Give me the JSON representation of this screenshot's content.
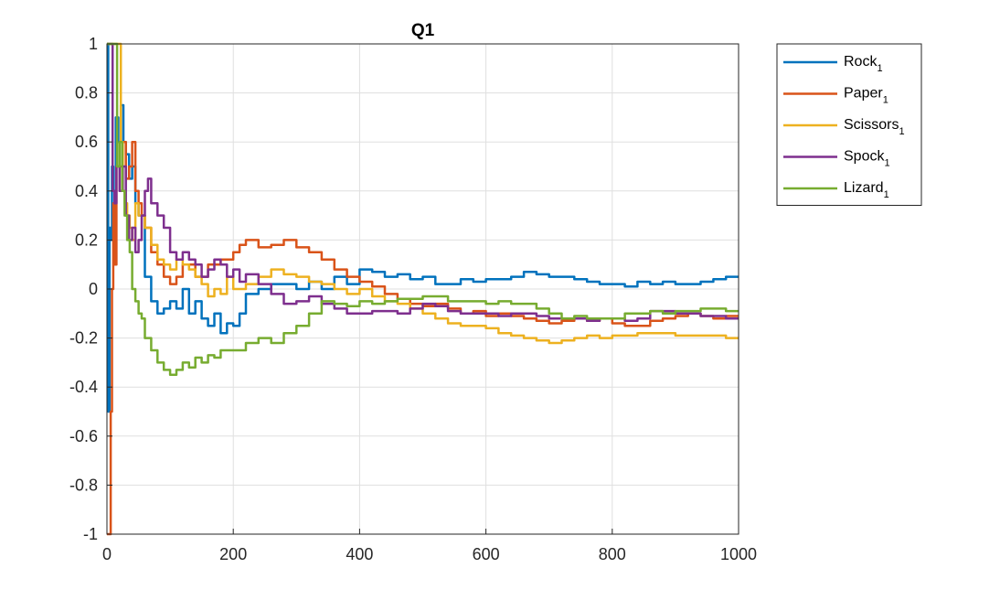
{
  "chart_data": {
    "type": "line",
    "title": "Q1",
    "xlabel": "",
    "ylabel": "",
    "xlim": [
      0,
      1000
    ],
    "ylim": [
      -1,
      1
    ],
    "xticks": [
      0,
      200,
      400,
      600,
      800,
      1000
    ],
    "yticks": [
      -1,
      -0.8,
      -0.6,
      -0.4,
      -0.2,
      0,
      0.2,
      0.4,
      0.6,
      0.8,
      1
    ],
    "xtick_labels": [
      "0",
      "200",
      "400",
      "600",
      "800",
      "1000"
    ],
    "ytick_labels": [
      "-1",
      "-0.8",
      "-0.6",
      "-0.4",
      "-0.2",
      "0",
      "0.2",
      "0.4",
      "0.6",
      "0.8",
      "1"
    ],
    "grid": true,
    "legend_position": "outside-top-right",
    "series": [
      {
        "name": "Rock",
        "subscript": "1",
        "color": "#0072BD",
        "x": [
          0,
          2,
          4,
          6,
          8,
          10,
          14,
          18,
          22,
          26,
          30,
          35,
          40,
          45,
          50,
          60,
          70,
          80,
          90,
          100,
          110,
          120,
          130,
          140,
          150,
          160,
          170,
          180,
          190,
          200,
          210,
          220,
          240,
          260,
          280,
          300,
          320,
          340,
          360,
          380,
          400,
          420,
          440,
          460,
          480,
          500,
          520,
          540,
          560,
          580,
          600,
          620,
          640,
          660,
          680,
          700,
          720,
          740,
          760,
          780,
          800,
          820,
          840,
          860,
          880,
          900,
          920,
          940,
          960,
          980,
          1000
        ],
        "y": [
          1,
          -0.5,
          0.25,
          0.2,
          0.5,
          0.4,
          0.7,
          0.6,
          0.75,
          0.6,
          0.55,
          0.45,
          0.5,
          0.35,
          0.3,
          0.05,
          -0.05,
          -0.1,
          -0.08,
          -0.05,
          -0.08,
          0.0,
          -0.1,
          -0.05,
          -0.12,
          -0.15,
          -0.1,
          -0.18,
          -0.14,
          -0.15,
          -0.1,
          -0.02,
          0.0,
          0.02,
          0.02,
          0.0,
          0.03,
          0.0,
          0.05,
          0.02,
          0.08,
          0.07,
          0.05,
          0.06,
          0.04,
          0.05,
          0.02,
          0.02,
          0.04,
          0.03,
          0.04,
          0.04,
          0.05,
          0.07,
          0.06,
          0.05,
          0.05,
          0.04,
          0.03,
          0.02,
          0.02,
          0.01,
          0.03,
          0.02,
          0.03,
          0.02,
          0.02,
          0.03,
          0.04,
          0.05,
          0.05
        ]
      },
      {
        "name": "Paper",
        "subscript": "1",
        "color": "#D95319",
        "x": [
          0,
          4,
          6,
          8,
          10,
          12,
          15,
          20,
          25,
          30,
          35,
          40,
          45,
          50,
          55,
          60,
          70,
          80,
          90,
          100,
          110,
          120,
          140,
          160,
          180,
          200,
          210,
          220,
          240,
          260,
          280,
          300,
          320,
          340,
          360,
          380,
          400,
          420,
          440,
          460,
          480,
          500,
          520,
          540,
          560,
          580,
          600,
          620,
          640,
          660,
          680,
          700,
          720,
          740,
          760,
          780,
          800,
          820,
          840,
          860,
          880,
          900,
          920,
          940,
          960,
          980,
          1000
        ],
        "y": [
          -1,
          -1,
          -0.5,
          0.0,
          0.35,
          0.1,
          0.5,
          0.5,
          0.6,
          0.45,
          0.5,
          0.6,
          0.4,
          0.35,
          0.3,
          0.25,
          0.15,
          0.1,
          0.05,
          0.02,
          0.05,
          0.1,
          0.05,
          0.1,
          0.12,
          0.15,
          0.18,
          0.2,
          0.17,
          0.18,
          0.2,
          0.17,
          0.15,
          0.12,
          0.08,
          0.05,
          0.03,
          0.01,
          -0.02,
          -0.04,
          -0.06,
          -0.07,
          -0.06,
          -0.08,
          -0.1,
          -0.09,
          -0.11,
          -0.1,
          -0.11,
          -0.12,
          -0.13,
          -0.14,
          -0.13,
          -0.12,
          -0.13,
          -0.12,
          -0.14,
          -0.15,
          -0.15,
          -0.13,
          -0.12,
          -0.11,
          -0.1,
          -0.11,
          -0.12,
          -0.11,
          -0.11
        ]
      },
      {
        "name": "Scissors",
        "subscript": "1",
        "color": "#EDB120",
        "x": [
          0,
          6,
          10,
          14,
          18,
          22,
          25,
          28,
          32,
          36,
          40,
          45,
          50,
          55,
          60,
          70,
          80,
          90,
          100,
          110,
          120,
          130,
          140,
          150,
          160,
          170,
          180,
          190,
          200,
          220,
          240,
          260,
          280,
          300,
          320,
          340,
          360,
          380,
          400,
          420,
          440,
          460,
          480,
          500,
          520,
          540,
          560,
          580,
          600,
          620,
          640,
          660,
          680,
          700,
          720,
          740,
          760,
          780,
          800,
          820,
          840,
          860,
          880,
          900,
          920,
          940,
          960,
          980,
          1000
        ],
        "y": [
          1,
          1,
          1,
          1,
          1,
          0.6,
          0.4,
          0.35,
          0.3,
          0.25,
          0.2,
          0.35,
          0.3,
          0.3,
          0.25,
          0.18,
          0.12,
          0.1,
          0.08,
          0.12,
          0.1,
          0.08,
          0.05,
          0.02,
          -0.03,
          0.0,
          -0.02,
          0.05,
          0.0,
          0.02,
          0.05,
          0.08,
          0.06,
          0.05,
          0.03,
          0.02,
          0.0,
          -0.02,
          0.0,
          -0.03,
          -0.05,
          -0.06,
          -0.08,
          -0.1,
          -0.12,
          -0.14,
          -0.15,
          -0.15,
          -0.16,
          -0.18,
          -0.19,
          -0.2,
          -0.21,
          -0.22,
          -0.21,
          -0.2,
          -0.19,
          -0.2,
          -0.19,
          -0.19,
          -0.18,
          -0.18,
          -0.18,
          -0.19,
          -0.19,
          -0.19,
          -0.19,
          -0.2,
          -0.2
        ]
      },
      {
        "name": "Spock",
        "subscript": "1",
        "color": "#7E2F8E",
        "x": [
          0,
          3,
          6,
          9,
          12,
          15,
          20,
          25,
          30,
          35,
          40,
          45,
          50,
          55,
          60,
          65,
          70,
          80,
          90,
          100,
          110,
          120,
          130,
          140,
          150,
          160,
          170,
          180,
          190,
          200,
          210,
          220,
          240,
          260,
          280,
          300,
          320,
          340,
          360,
          380,
          400,
          420,
          440,
          460,
          480,
          500,
          520,
          540,
          560,
          580,
          600,
          620,
          640,
          660,
          680,
          700,
          720,
          740,
          760,
          780,
          800,
          820,
          840,
          860,
          880,
          900,
          920,
          940,
          960,
          980,
          1000
        ],
        "y": [
          1,
          1,
          1,
          0.4,
          0.35,
          0.5,
          0.4,
          0.5,
          0.3,
          0.2,
          0.25,
          0.15,
          0.2,
          0.3,
          0.4,
          0.45,
          0.35,
          0.3,
          0.25,
          0.15,
          0.12,
          0.15,
          0.12,
          0.1,
          0.05,
          0.08,
          0.12,
          0.1,
          0.05,
          0.08,
          0.03,
          0.06,
          0.02,
          -0.02,
          -0.06,
          -0.05,
          -0.03,
          -0.06,
          -0.08,
          -0.1,
          -0.1,
          -0.09,
          -0.09,
          -0.1,
          -0.08,
          -0.06,
          -0.07,
          -0.09,
          -0.1,
          -0.1,
          -0.1,
          -0.11,
          -0.1,
          -0.1,
          -0.11,
          -0.12,
          -0.12,
          -0.12,
          -0.13,
          -0.12,
          -0.12,
          -0.13,
          -0.12,
          -0.09,
          -0.09,
          -0.1,
          -0.1,
          -0.11,
          -0.11,
          -0.12,
          -0.12
        ]
      },
      {
        "name": "Lizard",
        "subscript": "1",
        "color": "#77AC30",
        "x": [
          0,
          4,
          8,
          12,
          16,
          20,
          24,
          28,
          32,
          36,
          40,
          45,
          50,
          55,
          60,
          70,
          80,
          90,
          100,
          110,
          120,
          130,
          140,
          150,
          160,
          170,
          180,
          200,
          220,
          240,
          260,
          280,
          300,
          320,
          340,
          360,
          380,
          400,
          420,
          440,
          460,
          480,
          500,
          520,
          540,
          560,
          580,
          600,
          620,
          640,
          660,
          680,
          700,
          720,
          740,
          760,
          780,
          800,
          820,
          840,
          860,
          880,
          900,
          920,
          940,
          960,
          980,
          1000
        ],
        "y": [
          1,
          1,
          1,
          1,
          0.5,
          0.6,
          0.4,
          0.3,
          0.2,
          0.15,
          0.0,
          -0.05,
          -0.1,
          -0.12,
          -0.2,
          -0.25,
          -0.3,
          -0.33,
          -0.35,
          -0.33,
          -0.3,
          -0.32,
          -0.28,
          -0.3,
          -0.27,
          -0.28,
          -0.25,
          -0.25,
          -0.22,
          -0.2,
          -0.22,
          -0.18,
          -0.15,
          -0.1,
          -0.05,
          -0.06,
          -0.07,
          -0.05,
          -0.06,
          -0.05,
          -0.04,
          -0.04,
          -0.03,
          -0.03,
          -0.05,
          -0.05,
          -0.05,
          -0.06,
          -0.05,
          -0.06,
          -0.06,
          -0.08,
          -0.1,
          -0.12,
          -0.11,
          -0.12,
          -0.12,
          -0.12,
          -0.1,
          -0.1,
          -0.09,
          -0.1,
          -0.09,
          -0.09,
          -0.08,
          -0.08,
          -0.09,
          -0.09
        ]
      }
    ]
  }
}
